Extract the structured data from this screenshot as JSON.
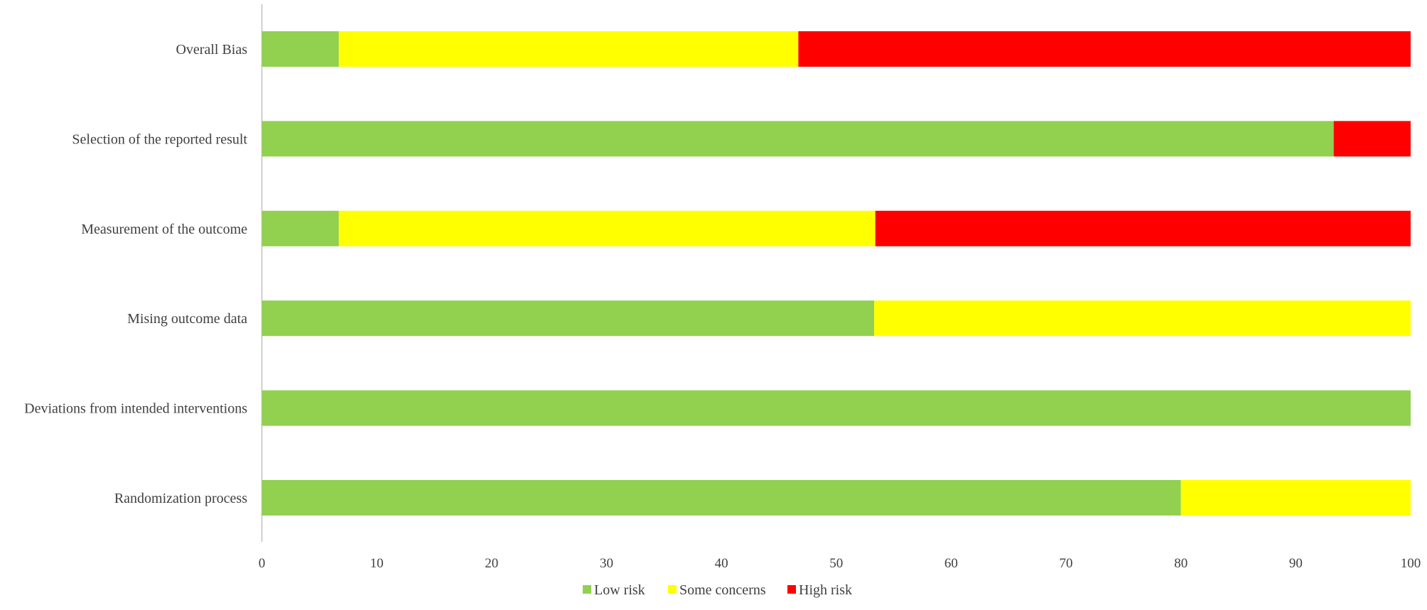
{
  "chart_data": {
    "type": "bar",
    "orientation": "horizontal",
    "stacked": true,
    "title": "",
    "xlabel": "",
    "ylabel": "",
    "categories": [
      "Overall Bias",
      "Selection of the reported result",
      "Measurement of the outcome",
      "Mising outcome data",
      "Deviations from intended interventions",
      "Randomization process"
    ],
    "series": [
      {
        "name": "Low risk",
        "color": "#92d050",
        "values": [
          6.7,
          93.3,
          6.7,
          53.3,
          100,
          80
        ]
      },
      {
        "name": "Some concerns",
        "color": "#ffff00",
        "values": [
          40,
          0,
          46.7,
          46.7,
          0,
          20
        ]
      },
      {
        "name": "High risk",
        "color": "#ff0000",
        "values": [
          53.3,
          6.7,
          46.7,
          0,
          0,
          0
        ]
      }
    ],
    "xlim": [
      0,
      100
    ],
    "x_ticks": [
      0,
      10,
      20,
      30,
      40,
      50,
      60,
      70,
      80,
      90,
      100
    ],
    "grid": false,
    "legend_position": "bottom"
  }
}
